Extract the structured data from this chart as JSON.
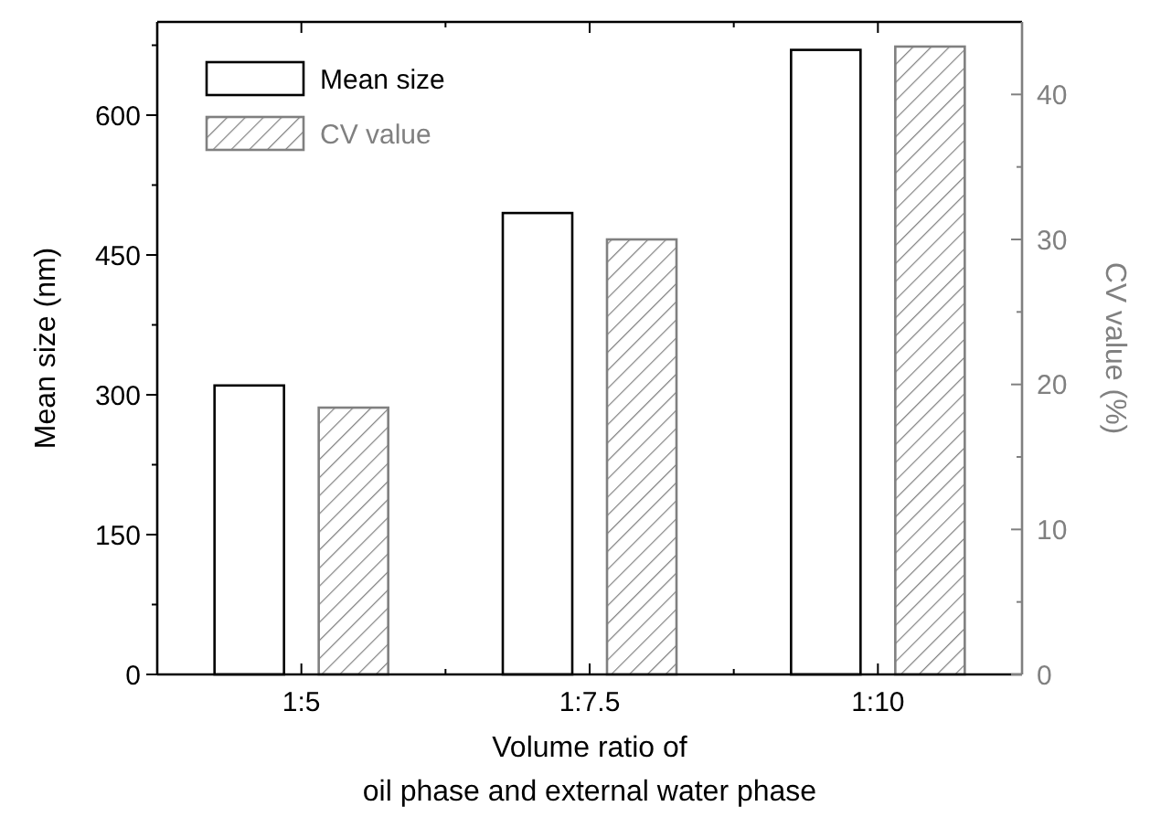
{
  "chart_data": {
    "type": "bar",
    "xlabel": "Volume ratio of\noil phase and external water phase",
    "ylabel": "Mean size (nm)",
    "y2label": "CV value (%)",
    "categories": [
      "1:5",
      "1:7.5",
      "1:10"
    ],
    "series": [
      {
        "name": "Mean size",
        "color": "#000000",
        "values": [
          310,
          495,
          670
        ]
      },
      {
        "name": "CV value",
        "color": "#808080",
        "values": [
          18.4,
          30,
          43.3
        ],
        "axis": "y2"
      }
    ],
    "ylim": [
      0,
      700
    ],
    "yticks": [
      0,
      {
        "value": 75,
        "label": null
      },
      150,
      {
        "value": 225,
        "label": null
      },
      300,
      {
        "value": 375,
        "label": null
      },
      450,
      {
        "value": 525,
        "label": null
      },
      600,
      {
        "value": 675,
        "label": null
      }
    ],
    "y2lim": [
      0,
      45
    ],
    "y2ticks": [
      0,
      {
        "value": 5,
        "label": null
      },
      10,
      {
        "value": 15,
        "label": null
      },
      20,
      {
        "value": 25,
        "label": null
      },
      30,
      {
        "value": 35,
        "label": null
      },
      40
    ],
    "legend": "top left",
    "grid": false
  }
}
